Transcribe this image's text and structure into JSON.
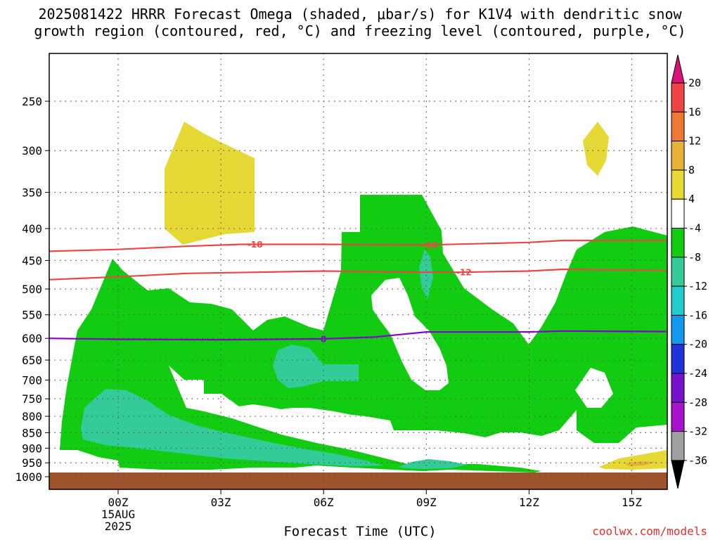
{
  "title_line1": "2025081422 HRRR Forecast Omega (shaded, μbar/s) for K1V4 with dendritic snow",
  "title_line2": "growth region (contoured, red, °C) and freezing level (contoured, purple, °C)",
  "xlabel": "Forecast Time (UTC)",
  "credit": "coolwx.com/models",
  "colors": {
    "omega_-4_-8": "#11cc11",
    "omega_-8_-12": "#33cc99",
    "omega_-12_-16": "#22cccc",
    "omega_4_8": "#e6d935",
    "omega_8_12": "#e8b23a",
    "ground": "#a0522d",
    "dgz_line": "#ee4444",
    "freezing_line": "#8800cc"
  },
  "chart_data": {
    "type": "heatmap",
    "title": "2025081422 HRRR Forecast Omega (shaded, μbar/s) for K1V4 with dendritic snow growth region (contoured, red, °C) and freezing level (contoured, purple, °C)",
    "xlabel": "Forecast Time (UTC)",
    "ylabel": "",
    "x_tick_labels": [
      "00Z\n15AUG\n2025",
      "03Z",
      "06Z",
      "09Z",
      "12Z",
      "15Z"
    ],
    "y_axis": "pressure (hPa), inverted, log",
    "y_ticks": [
      250,
      300,
      350,
      400,
      450,
      500,
      550,
      600,
      650,
      700,
      750,
      800,
      850,
      900,
      950,
      1000
    ],
    "grid": true,
    "colorbar": {
      "labels": [
        "20",
        "16",
        "12",
        "8",
        "4",
        "-4",
        "-8",
        "-12",
        "-16",
        "-20",
        "-24",
        "-28",
        "-32",
        "-36"
      ],
      "colors": [
        "#dd1177",
        "#ee4444",
        "#ee7733",
        "#e8b23a",
        "#e6d935",
        "#ffffff",
        "#11cc11",
        "#33cc99",
        "#22cccc",
        "#1199ee",
        "#2233dd",
        "#7711cc",
        "#aa11cc",
        "#a0a0a0",
        "#000000"
      ]
    },
    "contours": [
      {
        "label": "-18",
        "color": "red",
        "points": [
          {
            "t": -2,
            "p": 435
          },
          {
            "t": 0,
            "p": 432
          },
          {
            "t": 2,
            "p": 427
          },
          {
            "t": 3.6,
            "p": 424
          },
          {
            "t": 6,
            "p": 424
          },
          {
            "t": 9,
            "p": 425
          },
          {
            "t": 12,
            "p": 421
          },
          {
            "t": 13,
            "p": 418
          },
          {
            "t": 16,
            "p": 418
          }
        ]
      },
      {
        "label": "-12",
        "color": "red",
        "points": [
          {
            "t": -2,
            "p": 483
          },
          {
            "t": 0,
            "p": 478
          },
          {
            "t": 2,
            "p": 472
          },
          {
            "t": 4,
            "p": 470
          },
          {
            "t": 6,
            "p": 468
          },
          {
            "t": 9,
            "p": 470
          },
          {
            "t": 10,
            "p": 470
          },
          {
            "t": 12,
            "p": 468
          },
          {
            "t": 13,
            "p": 465
          },
          {
            "t": 16,
            "p": 467
          }
        ]
      },
      {
        "label": "0",
        "color": "purple",
        "points": [
          {
            "t": -2,
            "p": 600
          },
          {
            "t": 0,
            "p": 602
          },
          {
            "t": 3,
            "p": 603
          },
          {
            "t": 6,
            "p": 601
          },
          {
            "t": 7.5,
            "p": 597
          },
          {
            "t": 9,
            "p": 586
          },
          {
            "t": 12,
            "p": 586
          },
          {
            "t": 13,
            "p": 584
          },
          {
            "t": 16,
            "p": 585
          }
        ]
      }
    ]
  }
}
